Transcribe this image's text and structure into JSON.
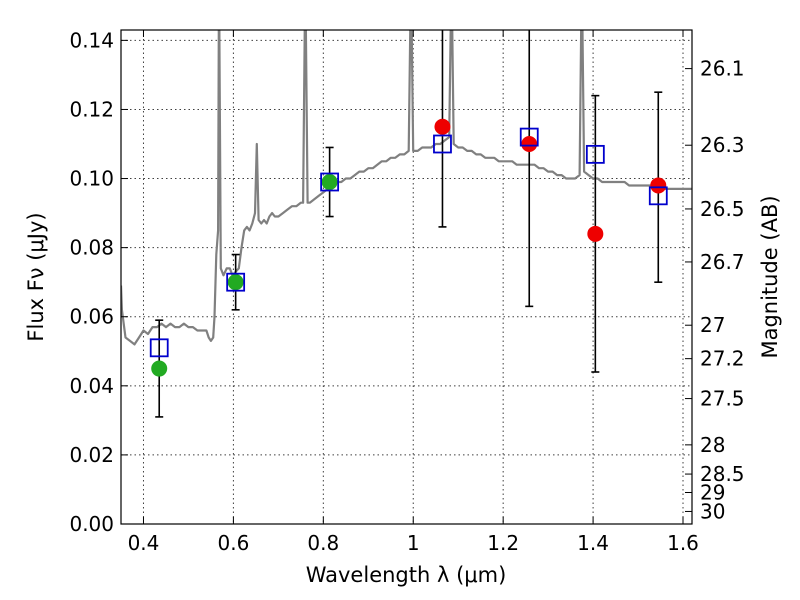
{
  "chart_data": {
    "type": "scatter",
    "xlabel": "Wavelength λ (μm)",
    "ylabel": "Flux Fν (μJy)",
    "y2label": "Magnitude (AB)",
    "xlim": [
      0.35,
      1.62
    ],
    "ylim": [
      0.0,
      0.143
    ],
    "grid": true,
    "x_ticks": [
      0.4,
      0.6,
      0.8,
      1.0,
      1.2,
      1.4,
      1.6
    ],
    "x_tick_labels": [
      "0.4",
      "0.6",
      "0.8",
      "1",
      "1.2",
      "1.4",
      "1.6"
    ],
    "y_ticks": [
      0.0,
      0.02,
      0.04,
      0.06,
      0.08,
      0.1,
      0.12,
      0.14
    ],
    "y_tick_labels": [
      "0.00",
      "0.02",
      "0.04",
      "0.06",
      "0.08",
      "0.10",
      "0.12",
      "0.14"
    ],
    "y2_ticks": [
      {
        "label": "26.1",
        "mag": 26.1
      },
      {
        "label": "26.3",
        "mag": 26.3
      },
      {
        "label": "26.5",
        "mag": 26.5
      },
      {
        "label": "26.7",
        "mag": 26.7
      },
      {
        "label": "27",
        "mag": 27.0
      },
      {
        "label": "27.2",
        "mag": 27.2
      },
      {
        "label": "27.5",
        "mag": 27.5
      },
      {
        "label": "28",
        "mag": 28.0
      },
      {
        "label": "28.5",
        "mag": 28.5
      },
      {
        "label": "29",
        "mag": 29.0
      },
      {
        "label": "30",
        "mag": 30.0
      }
    ],
    "series": [
      {
        "name": "model spectrum",
        "kind": "line",
        "color": "#808080",
        "points": [
          [
            0.35,
            0.069
          ],
          [
            0.352,
            0.062
          ],
          [
            0.36,
            0.054
          ],
          [
            0.37,
            0.053
          ],
          [
            0.38,
            0.052
          ],
          [
            0.39,
            0.054
          ],
          [
            0.4,
            0.056
          ],
          [
            0.41,
            0.055
          ],
          [
            0.42,
            0.057
          ],
          [
            0.43,
            0.057
          ],
          [
            0.44,
            0.058
          ],
          [
            0.45,
            0.057
          ],
          [
            0.46,
            0.058
          ],
          [
            0.47,
            0.057
          ],
          [
            0.48,
            0.057
          ],
          [
            0.49,
            0.058
          ],
          [
            0.5,
            0.057
          ],
          [
            0.51,
            0.057
          ],
          [
            0.52,
            0.056
          ],
          [
            0.53,
            0.056
          ],
          [
            0.54,
            0.056
          ],
          [
            0.545,
            0.054
          ],
          [
            0.55,
            0.053
          ],
          [
            0.555,
            0.054
          ],
          [
            0.558,
            0.06
          ],
          [
            0.562,
            0.078
          ],
          [
            0.566,
            0.085
          ],
          [
            0.568,
            0.16
          ],
          [
            0.572,
            0.074
          ],
          [
            0.578,
            0.072
          ],
          [
            0.585,
            0.074
          ],
          [
            0.592,
            0.074
          ],
          [
            0.598,
            0.072
          ],
          [
            0.605,
            0.073
          ],
          [
            0.612,
            0.074
          ],
          [
            0.618,
            0.08
          ],
          [
            0.624,
            0.085
          ],
          [
            0.63,
            0.086
          ],
          [
            0.636,
            0.085
          ],
          [
            0.642,
            0.087
          ],
          [
            0.648,
            0.09
          ],
          [
            0.652,
            0.11
          ],
          [
            0.656,
            0.088
          ],
          [
            0.662,
            0.087
          ],
          [
            0.668,
            0.088
          ],
          [
            0.674,
            0.087
          ],
          [
            0.68,
            0.089
          ],
          [
            0.686,
            0.09
          ],
          [
            0.692,
            0.089
          ],
          [
            0.7,
            0.089
          ],
          [
            0.71,
            0.09
          ],
          [
            0.72,
            0.091
          ],
          [
            0.73,
            0.092
          ],
          [
            0.74,
            0.092
          ],
          [
            0.75,
            0.093
          ],
          [
            0.755,
            0.093
          ],
          [
            0.76,
            0.16
          ],
          [
            0.765,
            0.093
          ],
          [
            0.77,
            0.093
          ],
          [
            0.78,
            0.094
          ],
          [
            0.79,
            0.095
          ],
          [
            0.8,
            0.096
          ],
          [
            0.81,
            0.097
          ],
          [
            0.82,
            0.098
          ],
          [
            0.83,
            0.099
          ],
          [
            0.84,
            0.099
          ],
          [
            0.85,
            0.1
          ],
          [
            0.86,
            0.1
          ],
          [
            0.87,
            0.101
          ],
          [
            0.88,
            0.102
          ],
          [
            0.89,
            0.102
          ],
          [
            0.9,
            0.103
          ],
          [
            0.91,
            0.103
          ],
          [
            0.92,
            0.104
          ],
          [
            0.93,
            0.105
          ],
          [
            0.94,
            0.105
          ],
          [
            0.95,
            0.106
          ],
          [
            0.96,
            0.106
          ],
          [
            0.97,
            0.107
          ],
          [
            0.98,
            0.107
          ],
          [
            0.99,
            0.108
          ],
          [
            0.995,
            0.16
          ],
          [
            1.0,
            0.108
          ],
          [
            1.01,
            0.108
          ],
          [
            1.02,
            0.109
          ],
          [
            1.03,
            0.109
          ],
          [
            1.04,
            0.109
          ],
          [
            1.05,
            0.11
          ],
          [
            1.06,
            0.11
          ],
          [
            1.07,
            0.111
          ],
          [
            1.08,
            0.112
          ],
          [
            1.085,
            0.16
          ],
          [
            1.09,
            0.11
          ],
          [
            1.1,
            0.109
          ],
          [
            1.11,
            0.109
          ],
          [
            1.12,
            0.108
          ],
          [
            1.13,
            0.108
          ],
          [
            1.14,
            0.107
          ],
          [
            1.15,
            0.107
          ],
          [
            1.16,
            0.106
          ],
          [
            1.17,
            0.106
          ],
          [
            1.18,
            0.106
          ],
          [
            1.19,
            0.105
          ],
          [
            1.2,
            0.105
          ],
          [
            1.21,
            0.105
          ],
          [
            1.22,
            0.105
          ],
          [
            1.23,
            0.104
          ],
          [
            1.24,
            0.104
          ],
          [
            1.25,
            0.104
          ],
          [
            1.26,
            0.104
          ],
          [
            1.27,
            0.104
          ],
          [
            1.28,
            0.103
          ],
          [
            1.29,
            0.103
          ],
          [
            1.3,
            0.102
          ],
          [
            1.31,
            0.102
          ],
          [
            1.32,
            0.101
          ],
          [
            1.33,
            0.101
          ],
          [
            1.34,
            0.1
          ],
          [
            1.35,
            0.1
          ],
          [
            1.36,
            0.1
          ],
          [
            1.37,
            0.101
          ],
          [
            1.375,
            0.16
          ],
          [
            1.38,
            0.102
          ],
          [
            1.39,
            0.101
          ],
          [
            1.4,
            0.1
          ],
          [
            1.41,
            0.1
          ],
          [
            1.42,
            0.099
          ],
          [
            1.43,
            0.099
          ],
          [
            1.44,
            0.099
          ],
          [
            1.45,
            0.099
          ],
          [
            1.46,
            0.099
          ],
          [
            1.47,
            0.099
          ],
          [
            1.48,
            0.098
          ],
          [
            1.49,
            0.098
          ],
          [
            1.5,
            0.098
          ],
          [
            1.51,
            0.098
          ],
          [
            1.52,
            0.098
          ],
          [
            1.53,
            0.098
          ],
          [
            1.54,
            0.098
          ],
          [
            1.55,
            0.097
          ],
          [
            1.56,
            0.097
          ],
          [
            1.57,
            0.097
          ],
          [
            1.58,
            0.097
          ],
          [
            1.59,
            0.097
          ],
          [
            1.6,
            0.097
          ],
          [
            1.61,
            0.097
          ],
          [
            1.62,
            0.097
          ]
        ]
      },
      {
        "name": "model photometry",
        "kind": "marker",
        "marker": "open-square",
        "color": "#0000cc",
        "points": [
          [
            0.435,
            0.051
          ],
          [
            0.605,
            0.07
          ],
          [
            0.814,
            0.099
          ],
          [
            1.065,
            0.11
          ],
          [
            1.258,
            0.112
          ],
          [
            1.405,
            0.107
          ],
          [
            1.545,
            0.095
          ]
        ]
      },
      {
        "name": "observed (green)",
        "kind": "marker",
        "marker": "filled-circle",
        "color": "#22aa22",
        "points": [
          [
            0.435,
            0.045
          ],
          [
            0.605,
            0.07
          ],
          [
            0.814,
            0.099
          ]
        ]
      },
      {
        "name": "observed (red)",
        "kind": "marker",
        "marker": "filled-circle",
        "color": "#ee0000",
        "points": [
          [
            1.065,
            0.115
          ],
          [
            1.258,
            0.11
          ],
          [
            1.405,
            0.084
          ],
          [
            1.545,
            0.098
          ]
        ]
      },
      {
        "name": "error bars",
        "kind": "errorbar",
        "color": "#000000",
        "points": [
          {
            "x": 0.435,
            "lo": 0.031,
            "hi": 0.059
          },
          {
            "x": 0.605,
            "lo": 0.062,
            "hi": 0.078
          },
          {
            "x": 0.814,
            "lo": 0.089,
            "hi": 0.109
          },
          {
            "x": 1.065,
            "lo": 0.086,
            "hi": 0.16
          },
          {
            "x": 1.258,
            "lo": 0.063,
            "hi": 0.16
          },
          {
            "x": 1.405,
            "lo": 0.044,
            "hi": 0.124
          },
          {
            "x": 1.545,
            "lo": 0.07,
            "hi": 0.125
          }
        ]
      }
    ]
  }
}
